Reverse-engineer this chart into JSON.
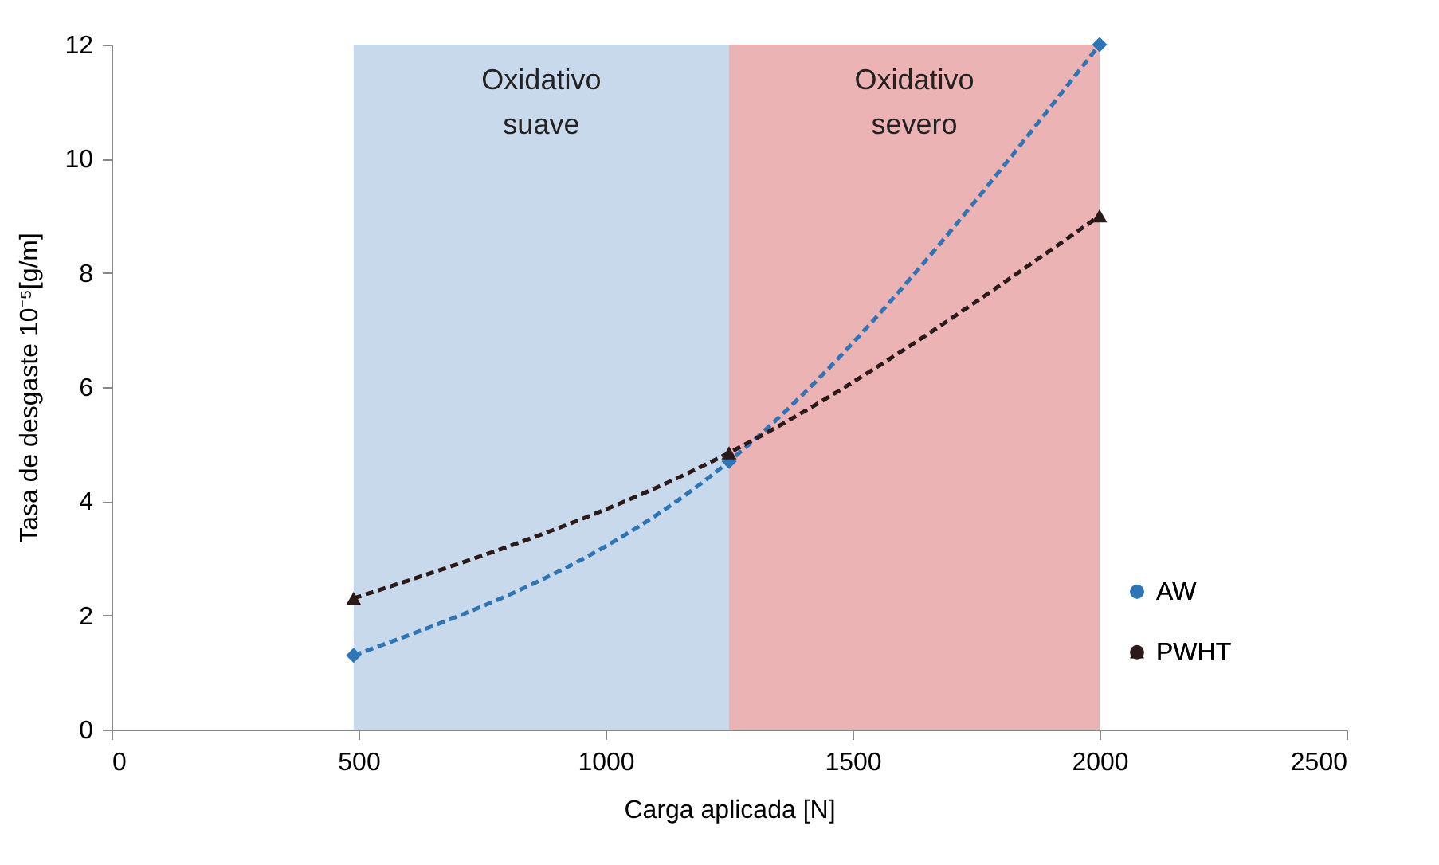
{
  "chart_data": {
    "type": "line",
    "xlabel": "Carga aplicada [N]",
    "ylabel": "Tasa de desgaste 10⁻⁵[g/m]",
    "xlim": [
      0,
      2500
    ],
    "xticks": [
      0,
      500,
      1000,
      1500,
      2000,
      2500
    ],
    "ylim": [
      0,
      12
    ],
    "yticks": [
      0,
      2,
      4,
      6,
      8,
      10,
      12
    ],
    "series": [
      {
        "name": "AW",
        "color": "#2e75b6",
        "marker": "diamond",
        "x": [
          490,
          1250,
          2000
        ],
        "values": [
          1.3,
          4.7,
          12
        ]
      },
      {
        "name": "PWHT",
        "color": "#2b1a1a",
        "marker": "triangle",
        "x": [
          490,
          1250,
          2000
        ],
        "values": [
          2.3,
          4.85,
          9.0
        ]
      }
    ],
    "bands": [
      {
        "axis": "x",
        "from": 490,
        "to": 1250,
        "label": "Oxidativo suave",
        "color": "#c9d9ec"
      },
      {
        "axis": "x",
        "from": 1250,
        "to": 2000,
        "label": "Oxidativo severo",
        "color": "#ebb3b3"
      }
    ],
    "grid": false,
    "legend": "bottom right",
    "line_style": "dashed"
  }
}
